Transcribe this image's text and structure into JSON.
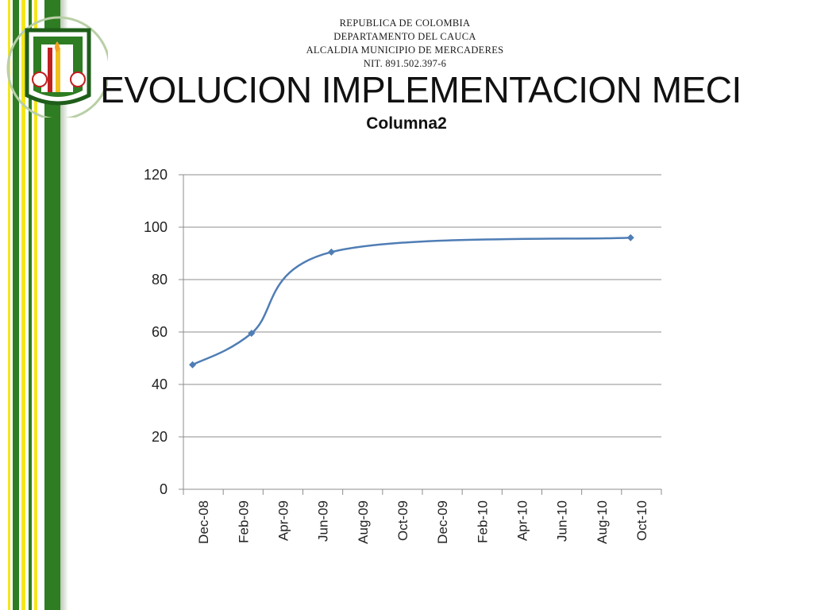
{
  "header": {
    "lines": [
      "REPUBLICA DE COLOMBIA",
      "DEPARTAMENTO DEL CAUCA",
      "ALCALDIA MUNICIPIO DE MERCADERES",
      "NIT. 891.502.397-6"
    ],
    "title": "EVOLUCION IMPLEMENTACION MECI"
  },
  "colors": {
    "stripe_green": "#2e7d22",
    "stripe_yellow": "#f5e61a",
    "series_line": "#4f7db5",
    "gridline": "#8c8c8c"
  },
  "chart_data": {
    "type": "line",
    "title": "Columna2",
    "xlabel": "",
    "ylabel": "",
    "categories": [
      "Dec-08",
      "Feb-09",
      "Apr-09",
      "Jun-09",
      "Aug-09",
      "Oct-09",
      "Dec-09",
      "Feb-10",
      "Apr-10",
      "Jun-10",
      "Aug-10",
      "Oct-10"
    ],
    "ylim": [
      0,
      120
    ],
    "yticks": [
      0,
      20,
      40,
      60,
      80,
      100,
      120
    ],
    "grid": true,
    "legend": "none",
    "series": [
      {
        "name": "",
        "points": [
          {
            "x": "2008-12-15",
            "y": 47.5
          },
          {
            "x": "2009-03-15",
            "y": 59.5
          },
          {
            "x": "2009-07-15",
            "y": 90.5
          },
          {
            "x": "2010-10-15",
            "y": 96
          }
        ],
        "smooth": true,
        "marker": "diamond"
      }
    ]
  }
}
